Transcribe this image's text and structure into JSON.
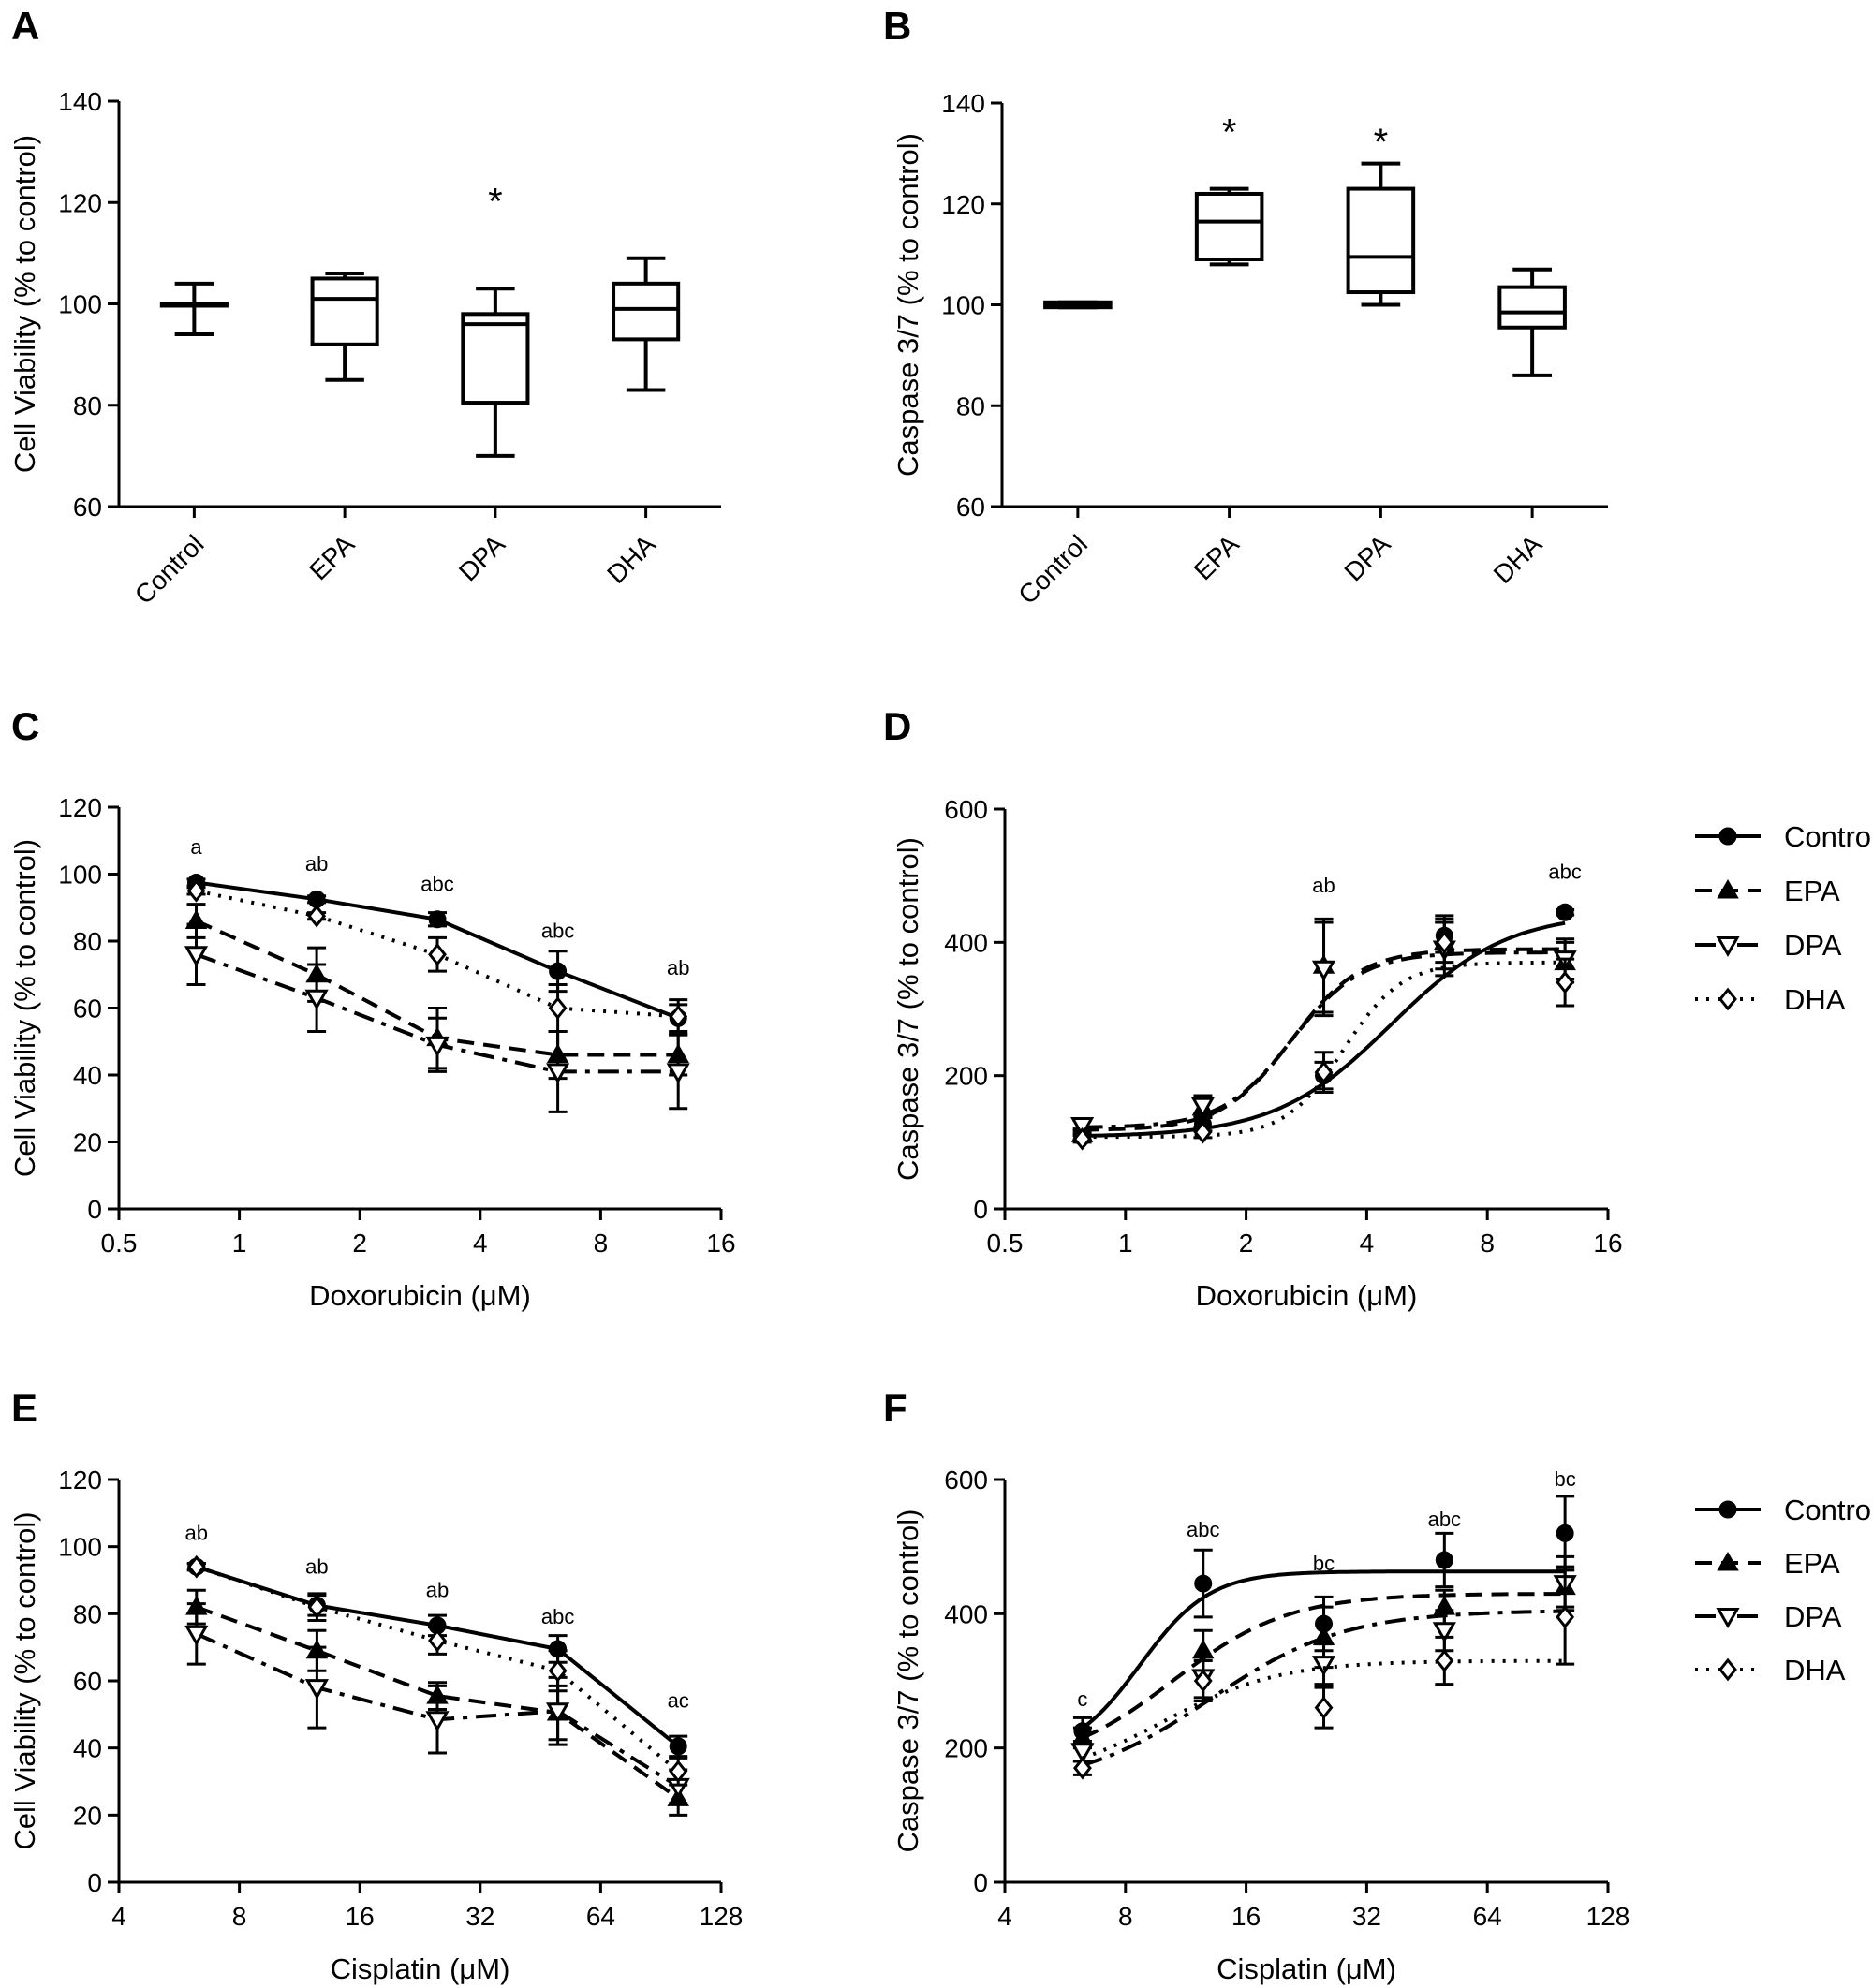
{
  "figure": {
    "panels": [
      "A",
      "B",
      "C",
      "D",
      "E",
      "F"
    ]
  },
  "chart_data": [
    {
      "panel": "A",
      "type": "box",
      "xlabel": "",
      "ylabel": "Cell Viability (% to control)",
      "ylim": [
        60,
        140
      ],
      "yticks": [
        60,
        80,
        100,
        120,
        140
      ],
      "categories": [
        "Control",
        "EPA",
        "DPA",
        "DHA"
      ],
      "boxes": [
        {
          "category": "Control",
          "min": 94,
          "q1": 100,
          "median": 100,
          "q3": 100,
          "max": 104
        },
        {
          "category": "EPA",
          "min": 85,
          "q1": 92,
          "median": 101,
          "q3": 105,
          "max": 106
        },
        {
          "category": "DPA",
          "min": 70,
          "q1": 80.5,
          "median": 96,
          "q3": 98,
          "max": 103
        },
        {
          "category": "DHA",
          "min": 83,
          "q1": 93,
          "median": 99,
          "q3": 104,
          "max": 109
        }
      ],
      "annotations": [
        {
          "category": "DPA",
          "text": "*",
          "y": 120
        }
      ]
    },
    {
      "panel": "B",
      "type": "box",
      "xlabel": "",
      "ylabel": "Caspase 3/7 (% to control)",
      "ylim": [
        60,
        140
      ],
      "yticks": [
        60,
        80,
        100,
        120,
        140
      ],
      "categories": [
        "Control",
        "EPA",
        "DPA",
        "DHA"
      ],
      "boxes": [
        {
          "category": "Control",
          "min": 99.5,
          "q1": 99.5,
          "median": 100,
          "q3": 100.5,
          "max": 100.5
        },
        {
          "category": "EPA",
          "min": 108,
          "q1": 109,
          "median": 116.5,
          "q3": 122,
          "max": 123
        },
        {
          "category": "DPA",
          "min": 100,
          "q1": 102.5,
          "median": 109.5,
          "q3": 123,
          "max": 128
        },
        {
          "category": "DHA",
          "min": 86,
          "q1": 95.5,
          "median": 98.5,
          "q3": 103.5,
          "max": 107
        }
      ],
      "annotations": [
        {
          "category": "EPA",
          "text": "*",
          "y": 134
        },
        {
          "category": "DPA",
          "text": "*",
          "y": 132
        }
      ]
    },
    {
      "panel": "C",
      "type": "line",
      "xscale": "log2",
      "xlabel": "Doxorubicin (μM)",
      "ylabel": "Cell Viability (% to control)",
      "xlim": [
        0.5,
        16
      ],
      "xticks": [
        0.5,
        1,
        2,
        4,
        8,
        16
      ],
      "xticklabels": [
        "0.5",
        "1",
        "2",
        "4",
        "8",
        "16"
      ],
      "ylim": [
        0,
        120
      ],
      "yticks": [
        0,
        20,
        40,
        60,
        80,
        100,
        120
      ],
      "x": [
        0.78,
        1.56,
        3.125,
        6.25,
        12.5
      ],
      "series": [
        {
          "name": "Control",
          "values": [
            97.5,
            92.5,
            86.5,
            71,
            57
          ],
          "err": [
            1,
            1,
            2,
            6,
            4
          ]
        },
        {
          "name": "EPA",
          "values": [
            86,
            70,
            51,
            46,
            46
          ],
          "err": [
            5,
            8,
            9,
            7,
            6
          ]
        },
        {
          "name": "DPA",
          "values": [
            76,
            63,
            49,
            41,
            41
          ],
          "err": [
            9,
            10,
            8,
            12,
            11
          ]
        },
        {
          "name": "DHA",
          "values": [
            95,
            87.5,
            76,
            60,
            57.5
          ],
          "err": [
            1,
            1,
            5,
            7,
            5
          ]
        }
      ],
      "annotations": [
        {
          "x": 0.78,
          "y": 106,
          "text": "a"
        },
        {
          "x": 1.56,
          "y": 101,
          "text": "ab"
        },
        {
          "x": 3.125,
          "y": 95,
          "text": "abc"
        },
        {
          "x": 6.25,
          "y": 81,
          "text": "abc"
        },
        {
          "x": 12.5,
          "y": 70,
          "text": "ab"
        }
      ]
    },
    {
      "panel": "D",
      "type": "line",
      "xscale": "log2",
      "xlabel": "Doxorubicin (μM)",
      "ylabel": "Caspase 3/7 (% to control)",
      "xlim": [
        0.5,
        16
      ],
      "xticks": [
        0.5,
        1,
        2,
        4,
        8,
        16
      ],
      "xticklabels": [
        "0.5",
        "1",
        "2",
        "4",
        "8",
        "16"
      ],
      "ylim": [
        0,
        600
      ],
      "yticks": [
        0,
        200,
        400,
        600
      ],
      "x": [
        0.78,
        1.56,
        3.125,
        6.25,
        12.5
      ],
      "series": [
        {
          "name": "Control",
          "values": [
            108,
            127,
            200,
            410,
            445
          ],
          "err": [
            5,
            10,
            20,
            25,
            4
          ],
          "fit": {
            "bottom": 108,
            "top": 445,
            "ec50": 4.6,
            "hill": 3
          }
        },
        {
          "name": "EPA",
          "values": [
            112,
            152,
            365,
            400,
            370
          ],
          "err": [
            8,
            15,
            70,
            30,
            30
          ],
          "fit": {
            "bottom": 118,
            "top": 390,
            "ec50": 2.6,
            "hill": 5
          }
        },
        {
          "name": "DPA",
          "values": [
            125,
            155,
            360,
            390,
            375
          ],
          "err": [
            8,
            15,
            70,
            40,
            30
          ],
          "fit": {
            "bottom": 122,
            "top": 385,
            "ec50": 2.6,
            "hill": 5
          }
        },
        {
          "name": "DHA",
          "values": [
            105,
            115,
            205,
            400,
            340
          ],
          "err": [
            5,
            8,
            30,
            40,
            35
          ],
          "fit": {
            "bottom": 108,
            "top": 370,
            "ec50": 3.5,
            "hill": 6
          }
        }
      ],
      "annotations": [
        {
          "x": 3.125,
          "y": 475,
          "text": "ab"
        },
        {
          "x": 12.5,
          "y": 495,
          "text": "abc"
        }
      ],
      "legend": {
        "placement": "right",
        "entries": [
          "Control",
          "EPA",
          "DPA",
          "DHA"
        ]
      }
    },
    {
      "panel": "E",
      "type": "line",
      "xscale": "log2",
      "xlabel": "Cisplatin (μM)",
      "ylabel": "Cell Viability (% to control)",
      "xlim": [
        4,
        128
      ],
      "xticks": [
        4,
        8,
        16,
        32,
        64,
        128
      ],
      "xticklabels": [
        "4",
        "8",
        "16",
        "32",
        "64",
        "128"
      ],
      "ylim": [
        0,
        120
      ],
      "yticks": [
        0,
        20,
        40,
        60,
        80,
        100,
        120
      ],
      "x": [
        6.25,
        12.5,
        25,
        50,
        100
      ],
      "series": [
        {
          "name": "Control",
          "values": [
            94,
            82.5,
            76.5,
            69.5,
            40.5
          ],
          "err": [
            1,
            3,
            3,
            4,
            3
          ]
        },
        {
          "name": "EPA",
          "values": [
            82,
            69,
            55.5,
            50.5,
            25
          ],
          "err": [
            5,
            6,
            4,
            8,
            5
          ]
        },
        {
          "name": "DPA",
          "values": [
            74,
            58,
            48.5,
            51,
            28.5
          ],
          "err": [
            9,
            12,
            10,
            10,
            5
          ]
        },
        {
          "name": "DHA",
          "values": [
            94,
            82,
            72,
            63,
            33
          ],
          "err": [
            1,
            4,
            4,
            6,
            4
          ]
        }
      ],
      "annotations": [
        {
          "x": 6.25,
          "y": 102,
          "text": "ab"
        },
        {
          "x": 12.5,
          "y": 92,
          "text": "ab"
        },
        {
          "x": 25,
          "y": 85,
          "text": "ab"
        },
        {
          "x": 50,
          "y": 77,
          "text": "abc"
        },
        {
          "x": 100,
          "y": 52,
          "text": "ac"
        }
      ]
    },
    {
      "panel": "F",
      "type": "line",
      "xscale": "log2",
      "xlabel": "Cisplatin (μM)",
      "ylabel": "Caspase 3/7 (% to control)",
      "xlim": [
        4,
        128
      ],
      "xticks": [
        4,
        8,
        16,
        32,
        64,
        128
      ],
      "xticklabels": [
        "4",
        "8",
        "16",
        "32",
        "64",
        "128"
      ],
      "ylim": [
        0,
        600
      ],
      "yticks": [
        0,
        200,
        400,
        600
      ],
      "x": [
        6.25,
        12.5,
        25,
        50,
        100
      ],
      "series": [
        {
          "name": "Control",
          "values": [
            225,
            445,
            385,
            480,
            520
          ],
          "err": [
            20,
            50,
            40,
            40,
            55
          ],
          "fit": {
            "bottom": 185,
            "top": 463,
            "ec50": 8.7,
            "hill": 5
          }
        },
        {
          "name": "EPA",
          "values": [
            215,
            345,
            365,
            410,
            440
          ],
          "err": [
            15,
            30,
            45,
            25,
            30
          ],
          "fit": {
            "bottom": 170,
            "top": 430,
            "ec50": 10.5,
            "hill": 3
          }
        },
        {
          "name": "DPA",
          "values": [
            195,
            305,
            325,
            375,
            445
          ],
          "err": [
            15,
            30,
            30,
            30,
            40
          ],
          "fit": {
            "bottom": 140,
            "top": 405,
            "ec50": 13,
            "hill": 2.6
          }
        },
        {
          "name": "DHA",
          "values": [
            170,
            300,
            260,
            330,
            395
          ],
          "err": [
            10,
            30,
            30,
            35,
            70
          ],
          "fit": {
            "bottom": 150,
            "top": 330,
            "ec50": 10,
            "hill": 3
          }
        }
      ],
      "annotations": [
        {
          "x": 6.25,
          "y": 262,
          "text": "c"
        },
        {
          "x": 12.5,
          "y": 515,
          "text": "abc"
        },
        {
          "x": 25,
          "y": 465,
          "text": "bc"
        },
        {
          "x": 50,
          "y": 530,
          "text": "abc"
        },
        {
          "x": 100,
          "y": 590,
          "text": "bc"
        }
      ],
      "legend": {
        "placement": "right",
        "entries": [
          "Control",
          "EPA",
          "DPA",
          "DHA"
        ]
      }
    }
  ]
}
